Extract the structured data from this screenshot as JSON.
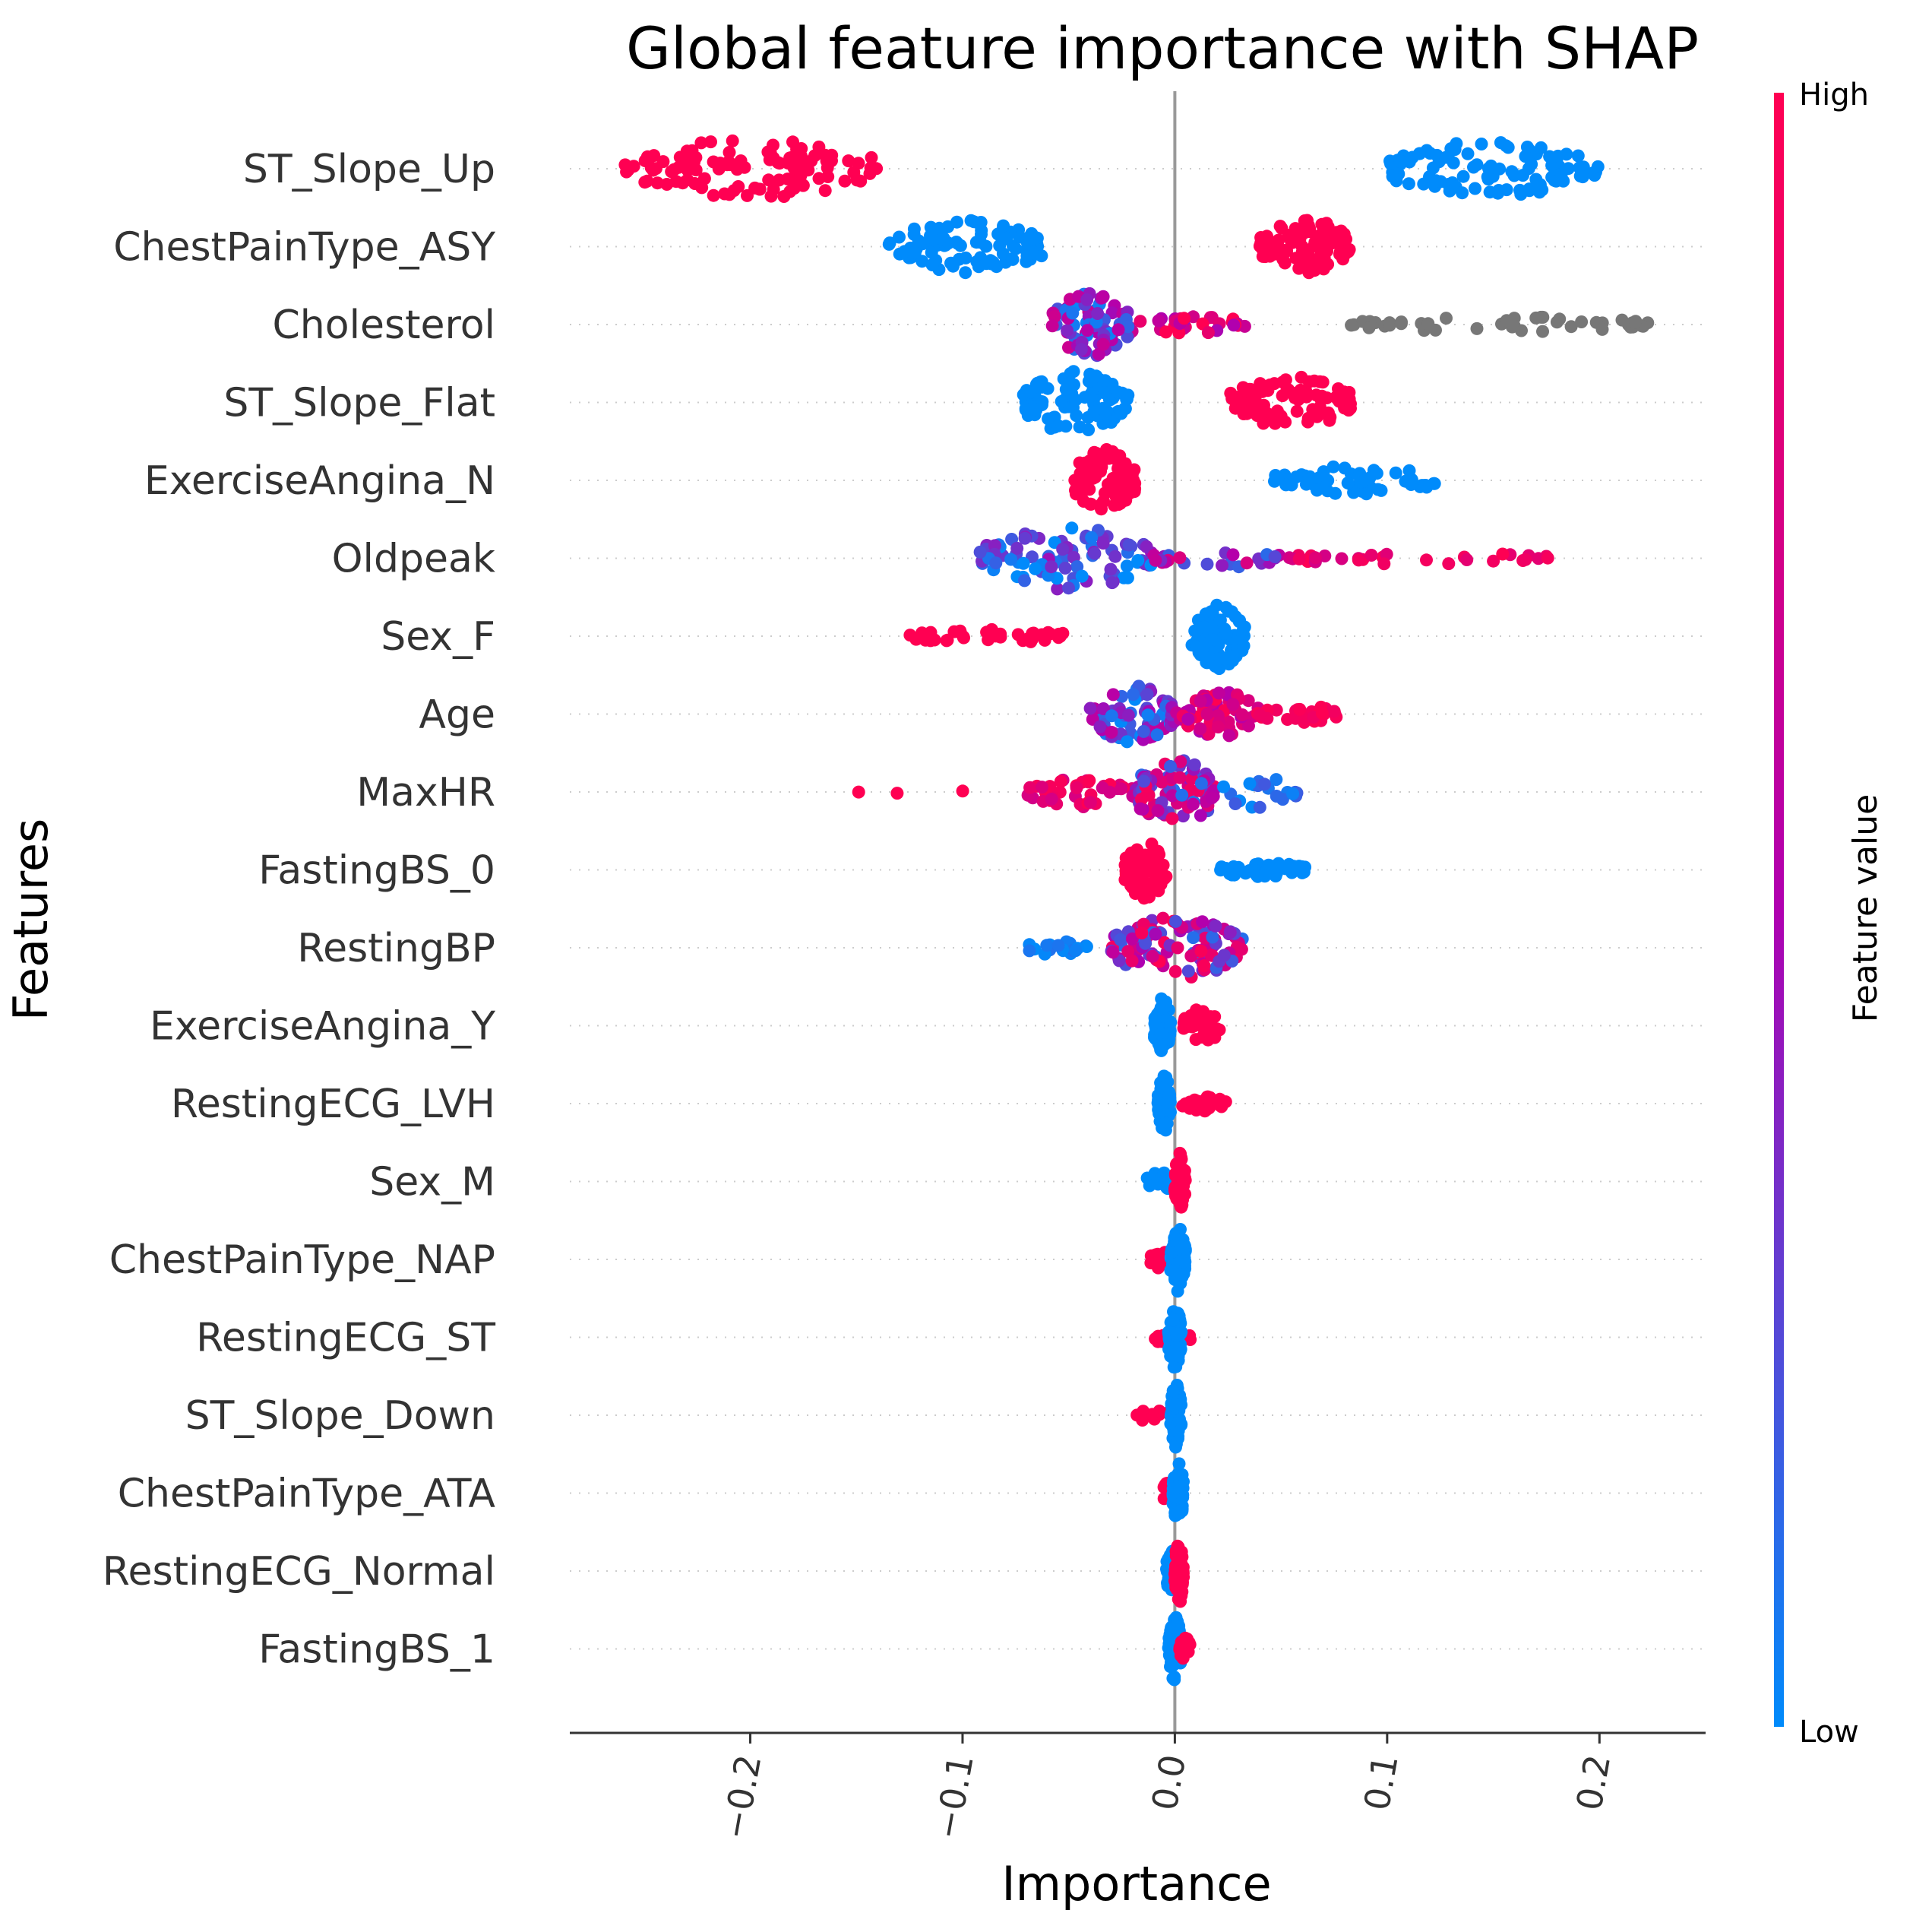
{
  "chart_data": {
    "type": "scatter",
    "subtype": "shap-beeswarm",
    "title": "Global feature importance with SHAP",
    "xlabel": "Importance",
    "ylabel": "Features",
    "xlim": [
      -0.285,
      0.25
    ],
    "xticks": [
      -0.2,
      -0.1,
      0.0,
      0.1,
      0.2
    ],
    "xtick_labels": [
      "−0.2",
      "−0.1",
      "0.0",
      "0.1",
      "0.2"
    ],
    "grid": false,
    "legend": "right",
    "colorbar": {
      "label": "Feature value",
      "high": "High",
      "low": "Low",
      "high_color": "#ff0052",
      "low_color": "#008bfb",
      "mid_color": "#b000b0",
      "missing_color": "#777777"
    },
    "features": [
      {
        "name": "ST_Slope_Up",
        "clusters": [
          {
            "min": -0.26,
            "max": -0.14,
            "n": 110,
            "value": 1,
            "width": 0.38
          },
          {
            "min": 0.1,
            "max": 0.2,
            "n": 100,
            "value": 0,
            "width": 0.36
          }
        ]
      },
      {
        "name": "ChestPainType_ASY",
        "clusters": [
          {
            "min": -0.135,
            "max": -0.062,
            "n": 90,
            "value": 0,
            "width": 0.34
          },
          {
            "min": 0.04,
            "max": 0.083,
            "n": 95,
            "value": 1,
            "width": 0.36
          }
        ]
      },
      {
        "name": "Cholesterol",
        "clusters": [
          {
            "min": -0.058,
            "max": -0.02,
            "n": 80,
            "value": 0.35,
            "spread": 0.35,
            "width": 0.42
          },
          {
            "min": -0.02,
            "max": 0.035,
            "n": 30,
            "value": 0.8,
            "spread": 0.35,
            "width": 0.12
          },
          {
            "min": 0.08,
            "max": 0.228,
            "n": 45,
            "value": null,
            "width": 0.1
          }
        ]
      },
      {
        "name": "ST_Slope_Flat",
        "clusters": [
          {
            "min": -0.072,
            "max": -0.022,
            "n": 100,
            "value": 0,
            "width": 0.4
          },
          {
            "min": 0.026,
            "max": 0.083,
            "n": 90,
            "value": 1,
            "width": 0.34
          }
        ]
      },
      {
        "name": "ExerciseAngina_N",
        "clusters": [
          {
            "min": -0.048,
            "max": -0.018,
            "n": 80,
            "value": 1,
            "width": 0.4
          },
          {
            "min": 0.046,
            "max": 0.124,
            "n": 60,
            "value": 0,
            "width": 0.2
          }
        ]
      },
      {
        "name": "Oldpeak",
        "clusters": [
          {
            "min": -0.092,
            "max": -0.01,
            "n": 90,
            "value": 0.2,
            "spread": 0.25,
            "width": 0.4
          },
          {
            "min": -0.01,
            "max": 0.05,
            "n": 25,
            "value": 0.45,
            "spread": 0.35,
            "width": 0.12
          },
          {
            "min": 0.05,
            "max": 0.18,
            "n": 30,
            "value": 0.85,
            "spread": 0.15,
            "width": 0.08
          }
        ]
      },
      {
        "name": "Sex_F",
        "clusters": [
          {
            "min": -0.125,
            "max": -0.052,
            "n": 40,
            "value": 1,
            "width": 0.1
          },
          {
            "min": 0.008,
            "max": 0.033,
            "n": 90,
            "value": 0,
            "width": 0.42
          }
        ]
      },
      {
        "name": "Age",
        "clusters": [
          {
            "min": -0.04,
            "max": 0.0,
            "n": 70,
            "value": 0.3,
            "spread": 0.3,
            "width": 0.38
          },
          {
            "min": 0.0,
            "max": 0.04,
            "n": 60,
            "value": 0.75,
            "spread": 0.25,
            "width": 0.3
          },
          {
            "min": 0.04,
            "max": 0.078,
            "n": 30,
            "value": 0.95,
            "spread": 0.05,
            "width": 0.12
          }
        ]
      },
      {
        "name": "MaxHR",
        "clusters": [
          {
            "min": -0.157,
            "max": -0.09,
            "n": 3,
            "value": 1,
            "width": 0.02
          },
          {
            "min": -0.07,
            "max": -0.02,
            "n": 40,
            "value": 0.85,
            "spread": 0.15,
            "width": 0.2
          },
          {
            "min": -0.02,
            "max": 0.02,
            "n": 90,
            "value": 0.5,
            "spread": 0.45,
            "width": 0.42
          },
          {
            "min": 0.02,
            "max": 0.058,
            "n": 20,
            "value": 0.1,
            "spread": 0.1,
            "width": 0.2
          }
        ]
      },
      {
        "name": "FastingBS_0",
        "clusters": [
          {
            "min": -0.024,
            "max": -0.004,
            "n": 70,
            "value": 1,
            "width": 0.38
          },
          {
            "min": 0.02,
            "max": 0.062,
            "n": 50,
            "value": 0,
            "width": 0.1
          }
        ]
      },
      {
        "name": "RestingBP",
        "clusters": [
          {
            "min": -0.07,
            "max": -0.04,
            "n": 20,
            "value": 0.05,
            "spread": 0.05,
            "width": 0.12
          },
          {
            "min": -0.03,
            "max": 0.032,
            "n": 110,
            "value": 0.55,
            "spread": 0.45,
            "width": 0.4
          }
        ]
      },
      {
        "name": "ExerciseAngina_Y",
        "clusters": [
          {
            "min": -0.01,
            "max": -0.002,
            "n": 60,
            "value": 0,
            "width": 0.36
          },
          {
            "min": 0.004,
            "max": 0.022,
            "n": 40,
            "value": 1,
            "width": 0.22
          }
        ]
      },
      {
        "name": "RestingECG_LVH",
        "clusters": [
          {
            "min": -0.008,
            "max": -0.002,
            "n": 60,
            "value": 0,
            "width": 0.38
          },
          {
            "min": 0.003,
            "max": 0.025,
            "n": 30,
            "value": 1,
            "width": 0.1
          }
        ]
      },
      {
        "name": "Sex_M",
        "clusters": [
          {
            "min": -0.014,
            "max": 0.0,
            "n": 15,
            "value": 0,
            "width": 0.12
          },
          {
            "min": 0.0,
            "max": 0.005,
            "n": 60,
            "value": 1,
            "width": 0.38
          }
        ]
      },
      {
        "name": "ChestPainType_NAP",
        "clusters": [
          {
            "min": -0.012,
            "max": -0.002,
            "n": 15,
            "value": 1,
            "width": 0.12
          },
          {
            "min": -0.002,
            "max": 0.005,
            "n": 60,
            "value": 0,
            "width": 0.42
          }
        ]
      },
      {
        "name": "RestingECG_ST",
        "clusters": [
          {
            "min": -0.01,
            "max": 0.008,
            "n": 15,
            "value": 1,
            "width": 0.1
          },
          {
            "min": -0.003,
            "max": 0.003,
            "n": 60,
            "value": 0,
            "width": 0.42
          }
        ]
      },
      {
        "name": "ST_Slope_Down",
        "clusters": [
          {
            "min": -0.02,
            "max": -0.002,
            "n": 15,
            "value": 1,
            "width": 0.08
          },
          {
            "min": -0.002,
            "max": 0.003,
            "n": 60,
            "value": 0,
            "width": 0.42
          }
        ]
      },
      {
        "name": "ChestPainType_ATA",
        "clusters": [
          {
            "min": -0.006,
            "max": 0.0,
            "n": 15,
            "value": 1,
            "width": 0.14
          },
          {
            "min": -0.001,
            "max": 0.004,
            "n": 60,
            "value": 0,
            "width": 0.42
          }
        ]
      },
      {
        "name": "RestingECG_Normal",
        "clusters": [
          {
            "min": -0.004,
            "max": 0.0,
            "n": 30,
            "value": 0,
            "width": 0.3
          },
          {
            "min": 0.0,
            "max": 0.004,
            "n": 50,
            "value": 1,
            "width": 0.42
          }
        ]
      },
      {
        "name": "FastingBS_1",
        "clusters": [
          {
            "min": -0.003,
            "max": 0.003,
            "n": 60,
            "value": 0,
            "width": 0.42
          },
          {
            "min": 0.002,
            "max": 0.008,
            "n": 15,
            "value": 1,
            "width": 0.14
          }
        ]
      }
    ]
  }
}
